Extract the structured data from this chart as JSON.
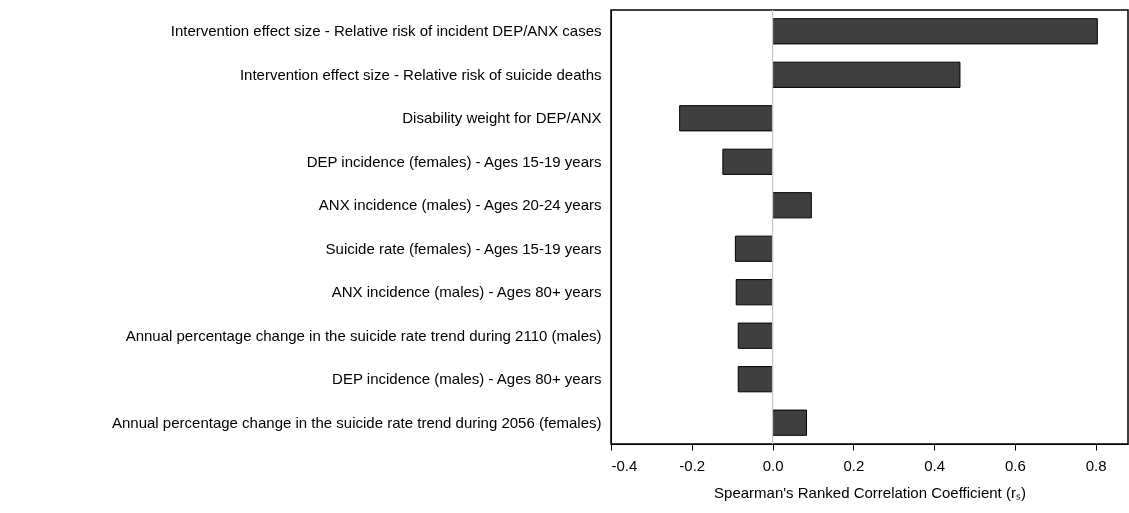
{
  "chart_data": {
    "type": "bar",
    "orientation": "horizontal",
    "xlabel": "Spearman's Ranked Correlation Coefficient (rₛ)",
    "categories": [
      "Intervention effect size - Relative risk of incident DEP/ANX cases",
      "Intervention effect size - Relative risk of suicide deaths",
      "Disability weight for DEP/ANX",
      "DEP incidence (females) - Ages 15-19 years",
      "ANX incidence (males) - Ages 20-24 years",
      "Suicide rate (females) - Ages 15-19 years",
      "ANX incidence (males) - Ages 80+ years",
      "Annual percentage change in the suicide rate trend during 2110 (males)",
      "DEP incidence (males) - Ages 80+ years",
      "Annual percentage change in the suicide rate trend during 2056 (females)"
    ],
    "values": [
      0.804,
      0.464,
      -0.23,
      -0.123,
      0.096,
      -0.092,
      -0.09,
      -0.085,
      -0.085,
      0.084
    ],
    "color": "#3f3f3f",
    "xlim": [
      -0.4,
      0.88
    ],
    "xticks": [
      {
        "value": -0.4,
        "label": "-0.4"
      },
      {
        "value": -0.2,
        "label": "-0.2"
      },
      {
        "value": 0,
        "label": "0.0"
      },
      {
        "value": 0.2,
        "label": "0.2"
      },
      {
        "value": 0.4,
        "label": "0.4"
      },
      {
        "value": 0.6,
        "label": "0.6"
      },
      {
        "value": 0.8,
        "label": "0.8"
      }
    ],
    "ref_lines": [
      {
        "axis": "x",
        "value": 0,
        "color": "#c8c8c8"
      }
    ],
    "grid": false
  }
}
